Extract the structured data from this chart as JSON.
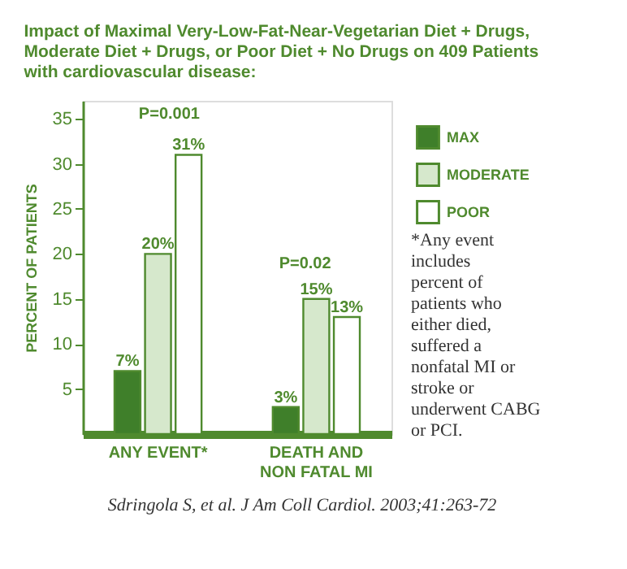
{
  "chart_data": {
    "type": "bar",
    "title": "Impact of Maximal Very-Low-Fat-Near-Vegetarian Diet + Drugs, Moderate Diet + Drugs, or Poor Diet + No Drugs on 409 Patients with cardiovascular disease:",
    "ylabel": "PERCENT OF PATIENTS",
    "categories": [
      "ANY EVENT*",
      "DEATH AND NON FATAL MI"
    ],
    "series": [
      {
        "name": "MAX",
        "color": "#3f7f2a",
        "values": [
          7,
          3
        ],
        "value_labels": [
          "7%",
          "3%"
        ]
      },
      {
        "name": "MODERATE",
        "color": "#d6e8cc",
        "values": [
          20,
          15
        ],
        "value_labels": [
          "20%",
          "15%"
        ]
      },
      {
        "name": "POOR",
        "color": "#ffffff",
        "values": [
          31,
          13
        ],
        "value_labels": [
          "31%",
          "13%"
        ]
      }
    ],
    "ylim": [
      0,
      37
    ],
    "yticks": [
      5,
      10,
      15,
      20,
      25,
      30,
      35
    ],
    "grid": false,
    "legend": "top right",
    "annotations": [
      "P=0.001",
      "P=0.02",
      "*Any event includes percent of patients who either died, suffered a nonfatal MI or stroke or underwent CABG or PCI.",
      "Sdringola S, et al. J Am Coll Cardiol. 2003;41:263-72"
    ]
  }
}
